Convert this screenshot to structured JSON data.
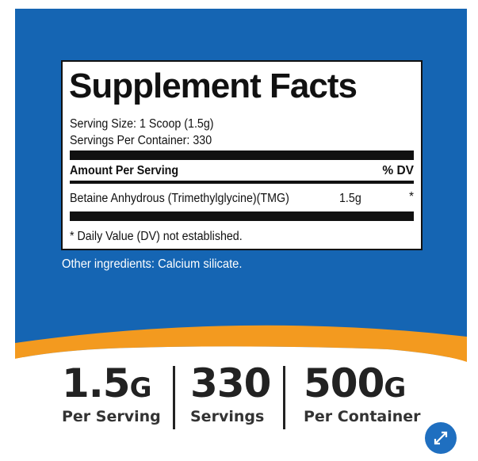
{
  "facts": {
    "title": "Supplement Facts",
    "serving_size": "Serving Size: 1 Scoop (1.5g)",
    "servings_per_container": "Servings Per Container: 330",
    "amount_header": "Amount Per Serving",
    "dv_header": "% DV",
    "rows": [
      [
        "Betaine Anhydrous (Trimethylglycine)(TMG)",
        "1.5g",
        "*"
      ]
    ],
    "footnote": "* Daily Value (DV) not established."
  },
  "other_ingredients": "Other ingredients: Calcium silicate.",
  "stats": [
    {
      "value": "1.5",
      "unit": "G",
      "label": "Per Serving"
    },
    {
      "value": "330",
      "label": "Servings"
    },
    {
      "value": "500",
      "unit": "G",
      "label": "Per Container"
    }
  ]
}
